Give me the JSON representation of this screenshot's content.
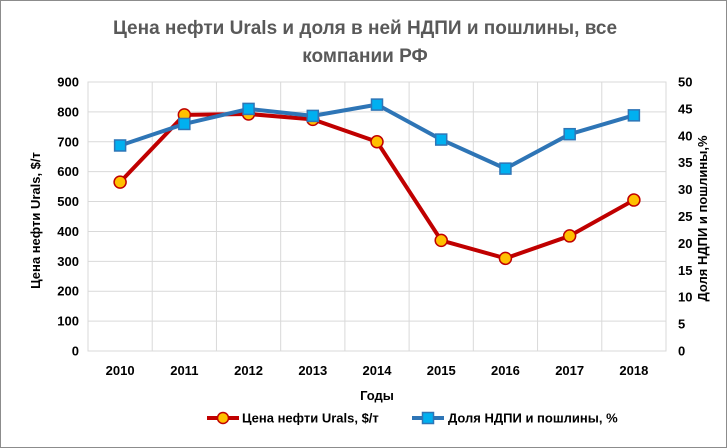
{
  "chart_data": {
    "type": "line",
    "title_line1": "Цена нефти Urals и доля в ней НДПИ и пошлины, все",
    "title_line2": "компании РФ",
    "xlabel": "Годы",
    "ylabel_left": "Цена нефти Urals, $/т",
    "ylabel_right": "Доля НДПИ и пошлины,%",
    "categories": [
      "2010",
      "2011",
      "2012",
      "2013",
      "2014",
      "2015",
      "2016",
      "2017",
      "2018"
    ],
    "y_left_ticks": [
      "0",
      "100",
      "200",
      "300",
      "400",
      "500",
      "600",
      "700",
      "800",
      "900"
    ],
    "y_right_ticks": [
      "0",
      "5",
      "10",
      "15",
      "20",
      "25",
      "30",
      "35",
      "40",
      "45",
      "50"
    ],
    "ylim_left": [
      0,
      900
    ],
    "ylim_right": [
      0,
      50
    ],
    "grid": true,
    "legend_position": "bottom",
    "series": [
      {
        "name": "Цена нефти Urals, $/т",
        "axis": "left",
        "color": "#c00000",
        "marker": "circle",
        "marker_fill": "#ffc000",
        "values": [
          565,
          790,
          793,
          775,
          700,
          370,
          310,
          385,
          505
        ]
      },
      {
        "name": "Доля НДПИ и пошлины, %",
        "axis": "right",
        "color": "#2e75b6",
        "marker": "square",
        "marker_fill": "#00b0f0",
        "values": [
          38.2,
          42.2,
          45.0,
          43.7,
          45.8,
          39.3,
          33.9,
          40.3,
          43.8
        ]
      }
    ]
  }
}
